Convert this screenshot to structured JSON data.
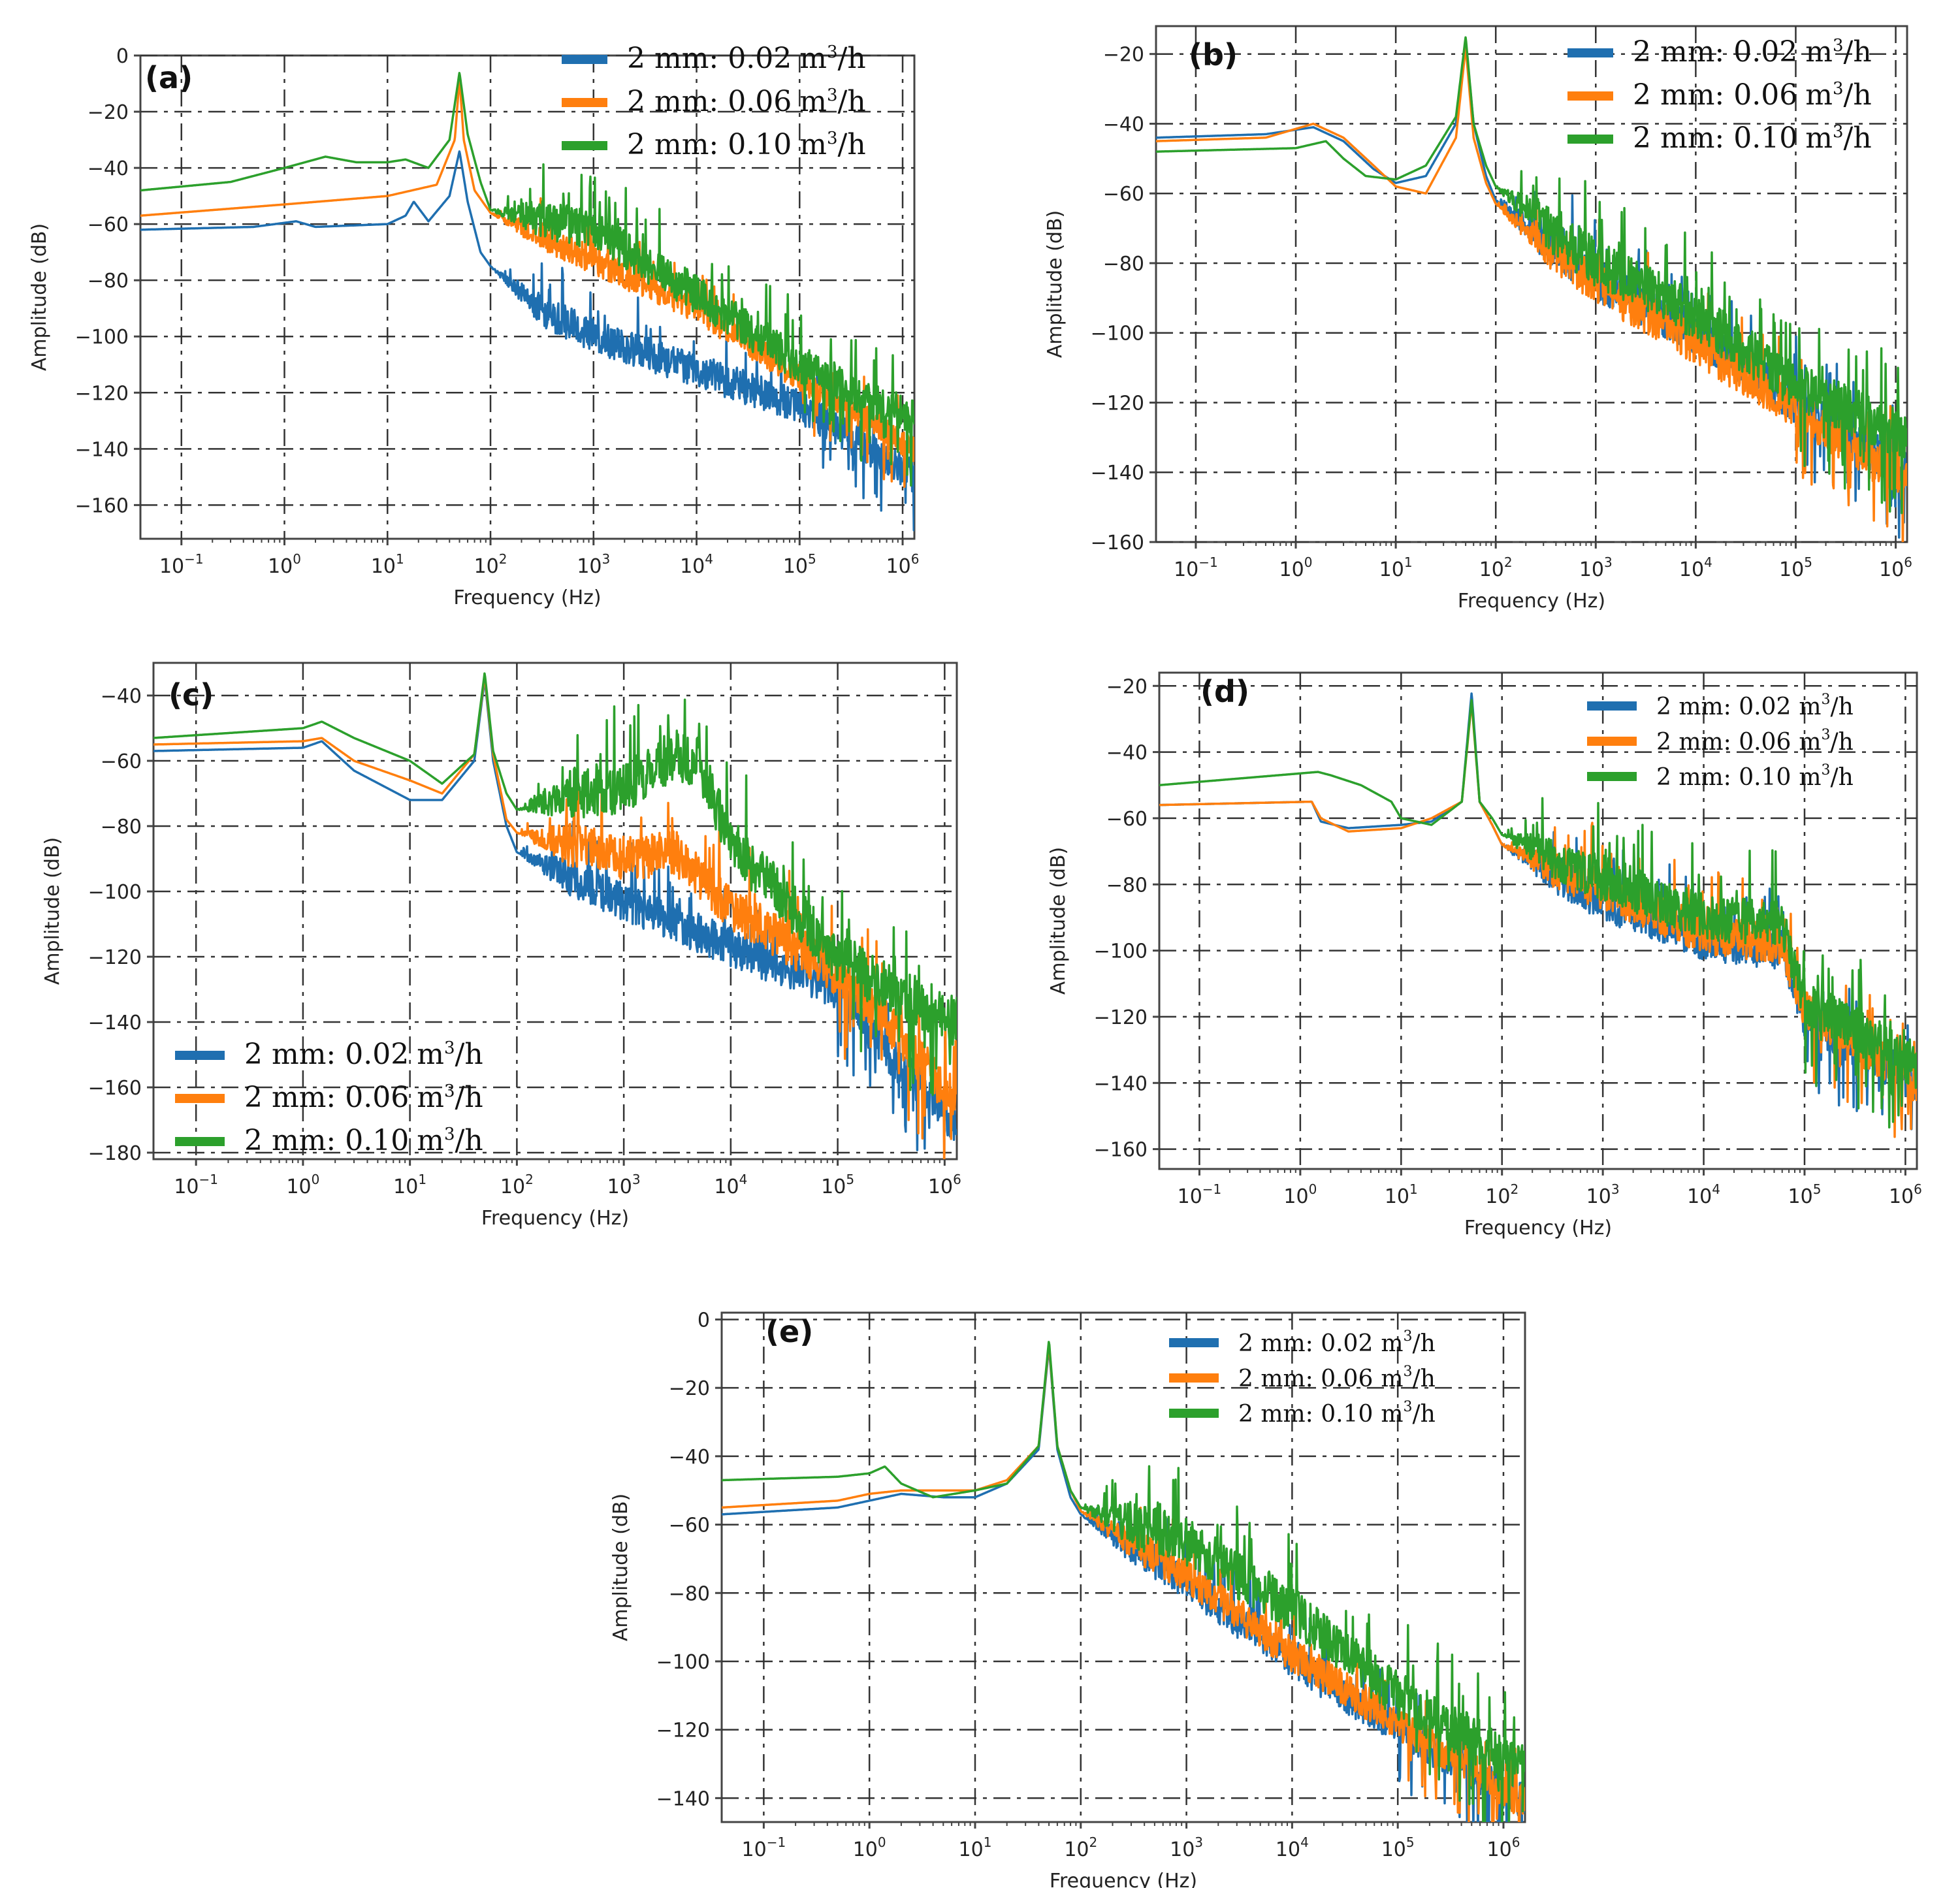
{
  "figure_colors": {
    "blue": "#1f6fb0",
    "orange": "#ff7f0e",
    "green": "#2ca02c",
    "grid": "#333333",
    "frame": "#444444"
  },
  "chart_data": [
    {
      "type": "line",
      "panel_label": "(a)",
      "xlabel": "Frequency (Hz)",
      "ylabel": "Amplitude (dB)",
      "xscale": "log",
      "xlim": [
        0.04,
        1300000
      ],
      "ylim": [
        -172,
        0
      ],
      "xticks": [
        0.1,
        1,
        10,
        100,
        1000,
        10000,
        100000,
        1000000
      ],
      "xtick_labels": [
        {
          "base": "10",
          "exp": "−1"
        },
        {
          "base": "10",
          "exp": "0"
        },
        {
          "base": "10",
          "exp": "1"
        },
        {
          "base": "10",
          "exp": "2"
        },
        {
          "base": "10",
          "exp": "3"
        },
        {
          "base": "10",
          "exp": "4"
        },
        {
          "base": "10",
          "exp": "5"
        },
        {
          "base": "10",
          "exp": "6"
        }
      ],
      "yticks": [
        0,
        -20,
        -40,
        -60,
        -80,
        -100,
        -120,
        -140,
        -160
      ],
      "ytick_labels": [
        "0",
        "−20",
        "−40",
        "−60",
        "−80",
        "−100",
        "−120",
        "−140",
        "−160"
      ],
      "legend_loc": "upper-right",
      "series": [
        {
          "name": "2 mm: 0.02",
          "unit_base": "m",
          "unit_exp": "3",
          "unit_tail": "/h",
          "color": "#1f6fb0",
          "x": [
            0.04,
            0.5,
            1.3,
            2,
            10,
            15,
            18,
            25,
            40,
            50,
            60,
            80,
            100,
            300,
            1000,
            10000,
            100000,
            1300000
          ],
          "y": [
            -62,
            -61,
            -59,
            -61,
            -60,
            -57,
            -52,
            -59,
            -50,
            -34,
            -52,
            -70,
            -75,
            -90,
            -100,
            -112,
            -125,
            -150
          ],
          "noise": 6,
          "noise_from": 100
        },
        {
          "name": "2 mm: 0.06",
          "unit_base": "m",
          "unit_exp": "3",
          "unit_tail": "/h",
          "color": "#ff7f0e",
          "x": [
            0.04,
            1,
            10,
            30,
            45,
            50,
            55,
            70,
            100,
            1000,
            10000,
            100000,
            1300000
          ],
          "y": [
            -57,
            -53,
            -50,
            -46,
            -30,
            -8,
            -30,
            -48,
            -56,
            -73,
            -90,
            -115,
            -140
          ],
          "noise": 5,
          "noise_from": 100
        },
        {
          "name": "2 mm: 0.10",
          "unit_base": "m",
          "unit_exp": "3",
          "unit_tail": "/h",
          "color": "#2ca02c",
          "x": [
            0.04,
            0.3,
            1,
            2.5,
            5,
            10,
            15,
            25,
            40,
            50,
            60,
            80,
            100,
            300,
            1000,
            10000,
            100000,
            1300000
          ],
          "y": [
            -48,
            -45,
            -40,
            -36,
            -38,
            -38,
            -37,
            -40,
            -30,
            -6,
            -28,
            -45,
            -55,
            -58,
            -62,
            -85,
            -110,
            -130
          ],
          "noise": 7,
          "noise_from": 100
        }
      ]
    },
    {
      "type": "line",
      "panel_label": "(b)",
      "xlabel": "Frequency (Hz)",
      "ylabel": "Amplitude (dB)",
      "xscale": "log",
      "xlim": [
        0.04,
        1300000
      ],
      "ylim": [
        -160,
        -12
      ],
      "xticks": [
        0.1,
        1,
        10,
        100,
        1000,
        10000,
        100000,
        1000000
      ],
      "xtick_labels": [
        {
          "base": "10",
          "exp": "−1"
        },
        {
          "base": "10",
          "exp": "0"
        },
        {
          "base": "10",
          "exp": "1"
        },
        {
          "base": "10",
          "exp": "2"
        },
        {
          "base": "10",
          "exp": "3"
        },
        {
          "base": "10",
          "exp": "4"
        },
        {
          "base": "10",
          "exp": "5"
        },
        {
          "base": "10",
          "exp": "6"
        }
      ],
      "yticks": [
        -20,
        -40,
        -60,
        -80,
        -100,
        -120,
        -140,
        -160
      ],
      "ytick_labels": [
        "−20",
        "−40",
        "−60",
        "−80",
        "−100",
        "−120",
        "−140",
        "−160"
      ],
      "legend_loc": "upper-right",
      "series": [
        {
          "name": "2 mm: 0.02",
          "unit_base": "m",
          "unit_exp": "3",
          "unit_tail": "/h",
          "color": "#1f6fb0",
          "x": [
            0.04,
            0.5,
            1.5,
            3,
            6,
            10,
            20,
            40,
            50,
            60,
            80,
            100,
            1000,
            10000,
            100000,
            1300000
          ],
          "y": [
            -44,
            -43,
            -41,
            -45,
            -53,
            -57,
            -55,
            -40,
            -16,
            -40,
            -55,
            -62,
            -85,
            -100,
            -120,
            -140
          ],
          "noise": 6,
          "noise_from": 100
        },
        {
          "name": "2 mm: 0.06",
          "unit_base": "m",
          "unit_exp": "3",
          "unit_tail": "/h",
          "color": "#ff7f0e",
          "x": [
            0.04,
            0.5,
            1.5,
            3,
            6,
            10,
            20,
            40,
            50,
            60,
            80,
            100,
            1000,
            10000,
            100000,
            1300000
          ],
          "y": [
            -45,
            -44,
            -40,
            -44,
            -52,
            -58,
            -60,
            -44,
            -18,
            -44,
            -57,
            -63,
            -86,
            -103,
            -122,
            -143
          ],
          "noise": 6,
          "noise_from": 100
        },
        {
          "name": "2 mm: 0.10",
          "unit_base": "m",
          "unit_exp": "3",
          "unit_tail": "/h",
          "color": "#2ca02c",
          "x": [
            0.04,
            1,
            2,
            3,
            5,
            10,
            20,
            40,
            50,
            60,
            80,
            100,
            1000,
            10000,
            100000,
            1300000
          ],
          "y": [
            -48,
            -47,
            -45,
            -50,
            -55,
            -56,
            -52,
            -38,
            -15,
            -40,
            -52,
            -58,
            -80,
            -95,
            -115,
            -130
          ],
          "noise": 7,
          "noise_from": 100
        }
      ]
    },
    {
      "type": "line",
      "panel_label": "(c)",
      "xlabel": "Frequency (Hz)",
      "ylabel": "Amplitude (dB)",
      "xscale": "log",
      "xlim": [
        0.04,
        1300000
      ],
      "ylim": [
        -182,
        -30
      ],
      "xticks": [
        0.1,
        1,
        10,
        100,
        1000,
        10000,
        100000,
        1000000
      ],
      "xtick_labels": [
        {
          "base": "10",
          "exp": "−1"
        },
        {
          "base": "10",
          "exp": "0"
        },
        {
          "base": "10",
          "exp": "1"
        },
        {
          "base": "10",
          "exp": "2"
        },
        {
          "base": "10",
          "exp": "3"
        },
        {
          "base": "10",
          "exp": "4"
        },
        {
          "base": "10",
          "exp": "5"
        },
        {
          "base": "10",
          "exp": "6"
        }
      ],
      "yticks": [
        -40,
        -60,
        -80,
        -100,
        -120,
        -140,
        -160,
        -180
      ],
      "ytick_labels": [
        "−40",
        "−60",
        "−80",
        "−100",
        "−120",
        "−140",
        "−160",
        "−180"
      ],
      "legend_loc": "lower-left",
      "series": [
        {
          "name": "2 mm: 0.02",
          "unit_base": "m",
          "unit_exp": "3",
          "unit_tail": "/h",
          "color": "#1f6fb0",
          "x": [
            0.04,
            1,
            1.5,
            3,
            10,
            20,
            40,
            50,
            60,
            80,
            100,
            1000,
            10000,
            100000,
            300000,
            1300000
          ],
          "y": [
            -57,
            -56,
            -54,
            -63,
            -72,
            -72,
            -60,
            -35,
            -60,
            -80,
            -88,
            -103,
            -117,
            -130,
            -150,
            -172
          ],
          "noise": 6,
          "noise_from": 100
        },
        {
          "name": "2 mm: 0.06",
          "unit_base": "m",
          "unit_exp": "3",
          "unit_tail": "/h",
          "color": "#ff7f0e",
          "x": [
            0.04,
            1,
            1.5,
            3,
            10,
            20,
            40,
            50,
            60,
            80,
            100,
            1000,
            3000,
            10000,
            100000,
            300000,
            1300000
          ],
          "y": [
            -55,
            -54,
            -53,
            -60,
            -66,
            -70,
            -58,
            -34,
            -58,
            -78,
            -82,
            -90,
            -88,
            -105,
            -125,
            -140,
            -165
          ],
          "noise": 7,
          "noise_from": 100
        },
        {
          "name": "2 mm: 0.10",
          "unit_base": "m",
          "unit_exp": "3",
          "unit_tail": "/h",
          "color": "#2ca02c",
          "x": [
            0.04,
            1,
            1.5,
            3,
            10,
            20,
            40,
            50,
            60,
            80,
            100,
            300,
            1000,
            3000,
            5000,
            10000,
            100000,
            300000,
            1300000
          ],
          "y": [
            -53,
            -50,
            -48,
            -53,
            -60,
            -67,
            -58,
            -33,
            -57,
            -70,
            -75,
            -70,
            -68,
            -58,
            -60,
            -85,
            -120,
            -130,
            -140
          ],
          "noise": 8,
          "noise_from": 100
        }
      ]
    },
    {
      "type": "line",
      "panel_label": "(d)",
      "xlabel": "Frequency (Hz)",
      "ylabel": "Amplitude (dB)",
      "xscale": "log",
      "xlim": [
        0.04,
        1300000
      ],
      "ylim": [
        -166,
        -16
      ],
      "xticks": [
        0.1,
        1,
        10,
        100,
        1000,
        10000,
        100000,
        1000000
      ],
      "xtick_labels": [
        {
          "base": "10",
          "exp": "−1"
        },
        {
          "base": "10",
          "exp": "0"
        },
        {
          "base": "10",
          "exp": "1"
        },
        {
          "base": "10",
          "exp": "2"
        },
        {
          "base": "10",
          "exp": "3"
        },
        {
          "base": "10",
          "exp": "4"
        },
        {
          "base": "10",
          "exp": "5"
        },
        {
          "base": "10",
          "exp": "6"
        }
      ],
      "yticks": [
        -20,
        -40,
        -60,
        -80,
        -100,
        -120,
        -140,
        -160
      ],
      "ytick_labels": [
        "−20",
        "−40",
        "−60",
        "−80",
        "−100",
        "−120",
        "−140",
        "−160"
      ],
      "legend_loc": "upper-right",
      "series": [
        {
          "name": "2 mm: 0.02",
          "unit_base": "m",
          "unit_exp": "3",
          "unit_tail": "/h",
          "color": "#1f6fb0",
          "x": [
            0.04,
            1.3,
            1.6,
            3,
            10,
            20,
            40,
            50,
            60,
            80,
            100,
            1000,
            10000,
            60000,
            100000,
            1300000
          ],
          "y": [
            -56,
            -55,
            -61,
            -63,
            -62,
            -61,
            -55,
            -22,
            -55,
            -62,
            -68,
            -85,
            -97,
            -100,
            -120,
            -140
          ],
          "noise": 6,
          "noise_from": 100
        },
        {
          "name": "2 mm: 0.06",
          "unit_base": "m",
          "unit_exp": "3",
          "unit_tail": "/h",
          "color": "#ff7f0e",
          "x": [
            0.04,
            1.3,
            1.6,
            3,
            10,
            20,
            40,
            50,
            60,
            80,
            100,
            1000,
            10000,
            60000,
            100000,
            1300000
          ],
          "y": [
            -56,
            -55,
            -60,
            -64,
            -63,
            -60,
            -55,
            -25,
            -55,
            -62,
            -68,
            -82,
            -95,
            -98,
            -118,
            -140
          ],
          "noise": 6,
          "noise_from": 100
        },
        {
          "name": "2 mm: 0.10",
          "unit_base": "m",
          "unit_exp": "3",
          "unit_tail": "/h",
          "color": "#2ca02c",
          "x": [
            0.04,
            1.5,
            2,
            4,
            8,
            10,
            20,
            40,
            50,
            60,
            80,
            100,
            1000,
            10000,
            60000,
            100000,
            1300000
          ],
          "y": [
            -50,
            -46,
            -47,
            -50,
            -55,
            -60,
            -62,
            -55,
            -24,
            -55,
            -60,
            -65,
            -78,
            -90,
            -92,
            -115,
            -135
          ],
          "noise": 7,
          "noise_from": 100
        }
      ]
    },
    {
      "type": "line",
      "panel_label": "(e)",
      "xlabel": "Frequency (Hz)",
      "ylabel": "Amplitude (dB)",
      "xscale": "log",
      "xlim": [
        0.04,
        1600000
      ],
      "ylim": [
        -147,
        2
      ],
      "xticks": [
        0.1,
        1,
        10,
        100,
        1000,
        10000,
        100000,
        1000000
      ],
      "xtick_labels": [
        {
          "base": "10",
          "exp": "−1"
        },
        {
          "base": "10",
          "exp": "0"
        },
        {
          "base": "10",
          "exp": "1"
        },
        {
          "base": "10",
          "exp": "2"
        },
        {
          "base": "10",
          "exp": "3"
        },
        {
          "base": "10",
          "exp": "4"
        },
        {
          "base": "10",
          "exp": "5"
        },
        {
          "base": "10",
          "exp": "6"
        }
      ],
      "yticks": [
        0,
        -20,
        -40,
        -60,
        -80,
        -100,
        -120,
        -140
      ],
      "ytick_labels": [
        "0",
        "−20",
        "−40",
        "−60",
        "−80",
        "−100",
        "−120",
        "−140"
      ],
      "legend_loc": "upper-right",
      "series": [
        {
          "name": "2 mm: 0.02",
          "unit_base": "m",
          "unit_exp": "3",
          "unit_tail": "/h",
          "color": "#1f6fb0",
          "x": [
            0.04,
            0.5,
            1,
            2,
            5,
            10,
            20,
            40,
            50,
            60,
            80,
            100,
            1000,
            10000,
            100000,
            1300000
          ],
          "y": [
            -57,
            -55,
            -53,
            -51,
            -52,
            -52,
            -48,
            -38,
            -8,
            -38,
            -52,
            -57,
            -77,
            -100,
            -120,
            -140
          ],
          "noise": 5,
          "noise_from": 100
        },
        {
          "name": "2 mm: 0.06",
          "unit_base": "m",
          "unit_exp": "3",
          "unit_tail": "/h",
          "color": "#ff7f0e",
          "x": [
            0.04,
            0.5,
            1,
            2,
            5,
            10,
            20,
            40,
            50,
            60,
            80,
            100,
            1000,
            10000,
            100000,
            1300000
          ],
          "y": [
            -55,
            -53,
            -51,
            -50,
            -50,
            -50,
            -47,
            -37,
            -7,
            -37,
            -50,
            -56,
            -75,
            -98,
            -118,
            -140
          ],
          "noise": 5,
          "noise_from": 100
        },
        {
          "name": "2 mm: 0.10",
          "unit_base": "m",
          "unit_exp": "3",
          "unit_tail": "/h",
          "color": "#2ca02c",
          "x": [
            0.04,
            0.5,
            1,
            1.4,
            2,
            4,
            10,
            20,
            40,
            50,
            60,
            80,
            100,
            1000,
            10000,
            100000,
            1300000
          ],
          "y": [
            -47,
            -46,
            -45,
            -43,
            -48,
            -52,
            -50,
            -48,
            -37,
            -6,
            -37,
            -50,
            -55,
            -65,
            -85,
            -110,
            -130
          ],
          "noise": 7,
          "noise_from": 100
        }
      ]
    }
  ]
}
